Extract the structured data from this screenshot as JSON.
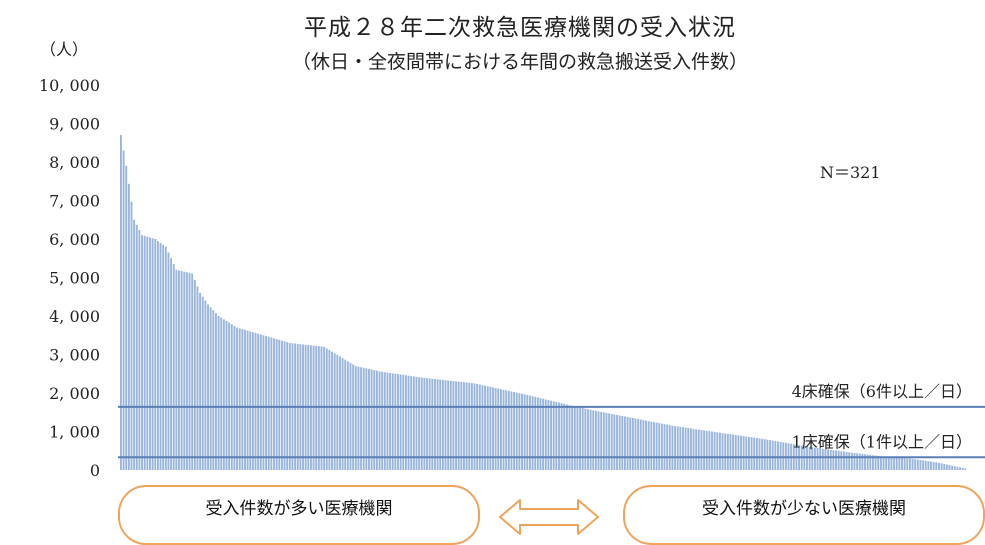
{
  "title": "平成２８年二次救急医療機関の受入状況",
  "subtitle": "（休日・全夜間帯における年間の救急搬送受入件数）",
  "unit_label": "（人）",
  "n_label": "N＝321",
  "buttons": {
    "many_label": "受入件数が多い医療機関",
    "few_label": "受入件数が少ない医療機関"
  },
  "colors": {
    "bar": "#9ab5dd",
    "bar_edge": "#7a97c4",
    "ref_line": "#5a7fb5",
    "pill_border": "#f0a35a",
    "arrow": "#f0a35a"
  },
  "chart_data": {
    "type": "bar",
    "title": "平成２８年二次救急医療機関の受入状況",
    "subtitle": "（休日・全夜間帯における年間の救急搬送受入件数）",
    "ylabel": "（人）",
    "n": 321,
    "ylim": [
      0,
      10000
    ],
    "yticks": [
      0,
      1000,
      2000,
      3000,
      4000,
      5000,
      6000,
      7000,
      8000,
      9000,
      10000
    ],
    "ytick_labels": [
      "0",
      "1, 000",
      "2, 000",
      "3, 000",
      "4, 000",
      "5, 000",
      "6, 000",
      "7, 000",
      "8, 000",
      "9, 000",
      "10, 000"
    ],
    "sorted": "descending",
    "profile": [
      [
        1,
        8700
      ],
      [
        3,
        7900
      ],
      [
        6,
        6500
      ],
      [
        9,
        6100
      ],
      [
        14,
        6000
      ],
      [
        18,
        5800
      ],
      [
        22,
        5200
      ],
      [
        28,
        5100
      ],
      [
        31,
        4600
      ],
      [
        34,
        4300
      ],
      [
        38,
        4000
      ],
      [
        45,
        3700
      ],
      [
        55,
        3500
      ],
      [
        65,
        3300
      ],
      [
        78,
        3200
      ],
      [
        90,
        2700
      ],
      [
        100,
        2550
      ],
      [
        115,
        2400
      ],
      [
        135,
        2250
      ],
      [
        155,
        1950
      ],
      [
        170,
        1700
      ],
      [
        180,
        1550
      ],
      [
        195,
        1350
      ],
      [
        210,
        1150
      ],
      [
        225,
        1000
      ],
      [
        245,
        800
      ],
      [
        262,
        600
      ],
      [
        278,
        450
      ],
      [
        290,
        350
      ],
      [
        300,
        300
      ],
      [
        310,
        200
      ],
      [
        321,
        40
      ]
    ],
    "reference_lines": [
      {
        "value": 1640,
        "label": "4床確保（6件以上／日）"
      },
      {
        "value": 330,
        "label": "1床確保（1件以上／日）"
      }
    ]
  }
}
